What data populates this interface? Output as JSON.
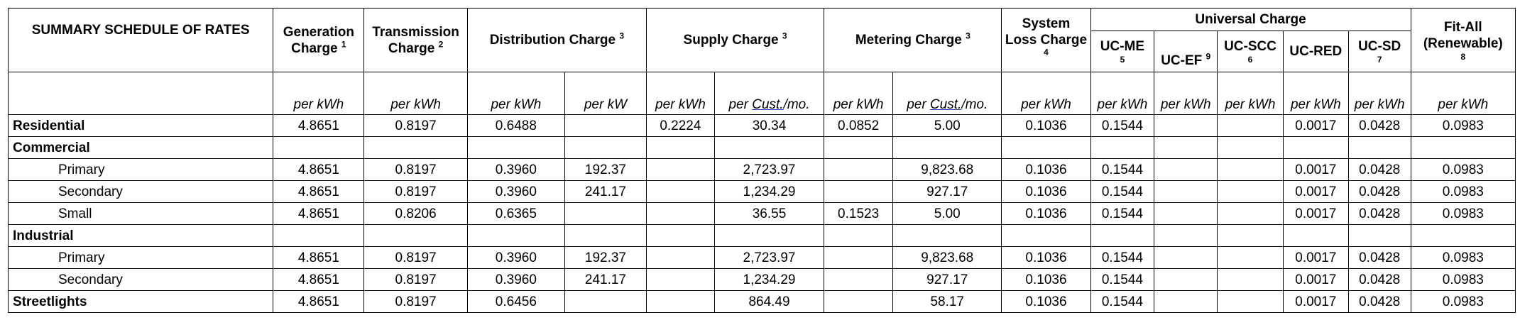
{
  "header": {
    "title": "SUMMARY SCHEDULE OF RATES",
    "generation": {
      "label": "Generation Charge",
      "note": "1"
    },
    "transmission": {
      "label": "Transmission Charge",
      "note": "2"
    },
    "distribution": {
      "label": "Distribution Charge",
      "note": "3"
    },
    "supply": {
      "label": "Supply Charge",
      "note": "3"
    },
    "metering": {
      "label": "Metering Charge",
      "note": "3"
    },
    "system_loss": {
      "label": "System Loss Charge",
      "note": "4"
    },
    "universal": {
      "label": "Universal Charge"
    },
    "uc_me": {
      "label": "UC-ME",
      "note": "5"
    },
    "uc_ef": {
      "label": "UC-EF",
      "note": "9"
    },
    "uc_scc": {
      "label": "UC-SCC",
      "note": "6"
    },
    "uc_red": {
      "label": "UC-RED"
    },
    "uc_sd": {
      "label": "UC-SD",
      "note": "7"
    },
    "fit_all": {
      "label": "Fit-All (Renewable)",
      "note": "8"
    }
  },
  "units": {
    "per_kwh": "per kWh",
    "per_kw": "per kW",
    "per_cust_prefix": "per ",
    "per_cust_word": "Cust.",
    "per_cust_suffix": "/mo."
  },
  "sections": {
    "residential": {
      "name": "Residential",
      "values": [
        "4.8651",
        "0.8197",
        "0.6488",
        "",
        "0.2224",
        "30.34",
        "0.0852",
        "5.00",
        "0.1036",
        "0.1544",
        "",
        "",
        "0.0017",
        "0.0428",
        "0.0983"
      ]
    },
    "commercial": {
      "name": "Commercial",
      "rows": [
        {
          "name": "Primary",
          "values": [
            "4.8651",
            "0.8197",
            "0.3960",
            "192.37",
            "",
            "2,723.97",
            "",
            "9,823.68",
            "0.1036",
            "0.1544",
            "",
            "",
            "0.0017",
            "0.0428",
            "0.0983"
          ]
        },
        {
          "name": "Secondary",
          "values": [
            "4.8651",
            "0.8197",
            "0.3960",
            "241.17",
            "",
            "1,234.29",
            "",
            "927.17",
            "0.1036",
            "0.1544",
            "",
            "",
            "0.0017",
            "0.0428",
            "0.0983"
          ]
        },
        {
          "name": "Small",
          "values": [
            "4.8651",
            "0.8206",
            "0.6365",
            "",
            "",
            "36.55",
            "0.1523",
            "5.00",
            "0.1036",
            "0.1544",
            "",
            "",
            "0.0017",
            "0.0428",
            "0.0983"
          ]
        }
      ]
    },
    "industrial": {
      "name": "Industrial",
      "rows": [
        {
          "name": "Primary",
          "values": [
            "4.8651",
            "0.8197",
            "0.3960",
            "192.37",
            "",
            "2,723.97",
            "",
            "9,823.68",
            "0.1036",
            "0.1544",
            "",
            "",
            "0.0017",
            "0.0428",
            "0.0983"
          ]
        },
        {
          "name": "Secondary",
          "values": [
            "4.8651",
            "0.8197",
            "0.3960",
            "241.17",
            "",
            "1,234.29",
            "",
            "927.17",
            "0.1036",
            "0.1544",
            "",
            "",
            "0.0017",
            "0.0428",
            "0.0983"
          ]
        }
      ]
    },
    "streetlights": {
      "name": "Streetlights",
      "values": [
        "4.8651",
        "0.8197",
        "0.6456",
        "",
        "",
        "864.49",
        "",
        "58.17",
        "0.1036",
        "0.1544",
        "",
        "",
        "0.0017",
        "0.0428",
        "0.0983"
      ]
    }
  }
}
